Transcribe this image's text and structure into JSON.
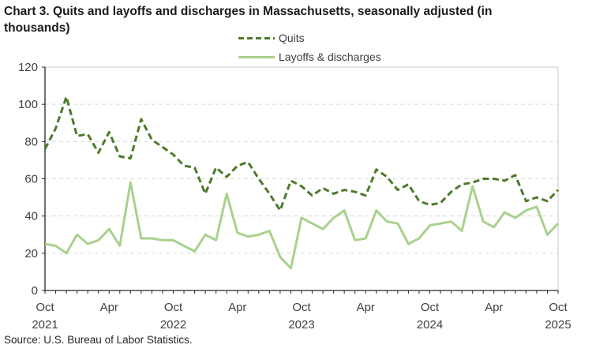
{
  "title": "Chart 3. Quits and layoffs and discharges in Massachusetts, seasonally adjusted (in thousands)",
  "source": "Source: U.S. Bureau of Labor Statistics.",
  "legend": {
    "quits_label": "Quits",
    "layoffs_label": "Layoffs & discharges"
  },
  "colors": {
    "quits": "#4d7a2b",
    "layoffs": "#a9d18e",
    "grid": "#d9d9d9",
    "border": "#c8c8c8",
    "axis": "#262626",
    "label_text": "#404040"
  },
  "chart_data": {
    "type": "line",
    "title": "Chart 3. Quits and layoffs and discharges in Massachusetts, seasonally adjusted (in thousands)",
    "xlabel": "",
    "ylabel": "",
    "ylim": [
      0,
      120
    ],
    "yticks": [
      0,
      20,
      40,
      60,
      80,
      100,
      120
    ],
    "grid": "horizontal-dashed",
    "legend_position": "top-center",
    "x_unit": "months, Oct 2021 through Oct 2025, one point per month",
    "n_points": 49,
    "x_tick_labels": [
      {
        "index": 0,
        "month": "Oct",
        "year": "2021"
      },
      {
        "index": 6,
        "month": "Apr"
      },
      {
        "index": 12,
        "month": "Oct",
        "year": "2022"
      },
      {
        "index": 18,
        "month": "Apr"
      },
      {
        "index": 24,
        "month": "Oct",
        "year": "2023"
      },
      {
        "index": 30,
        "month": "Apr"
      },
      {
        "index": 36,
        "month": "Oct",
        "year": "2024"
      },
      {
        "index": 42,
        "month": "Apr"
      },
      {
        "index": 48,
        "month": "Oct",
        "year": "2025"
      }
    ],
    "series": [
      {
        "name": "Quits",
        "style": "dashed",
        "values": [
          76,
          87,
          104,
          83,
          84,
          74,
          85,
          72,
          71,
          92,
          81,
          77,
          73,
          67,
          66,
          52,
          66,
          61,
          67,
          69,
          60,
          52,
          43,
          59,
          56,
          51,
          55,
          52,
          54,
          53,
          51,
          65,
          61,
          54,
          57,
          48,
          46,
          47,
          53,
          57,
          58,
          60,
          60,
          59,
          62,
          48,
          50,
          48,
          54
        ]
      },
      {
        "name": "Layoffs & discharges",
        "style": "solid",
        "values": [
          25,
          24,
          20,
          30,
          25,
          27,
          33,
          24,
          58,
          28,
          28,
          27,
          27,
          24,
          21,
          30,
          27,
          52,
          31,
          29,
          30,
          32,
          18,
          12,
          39,
          36,
          33,
          39,
          43,
          27,
          28,
          43,
          37,
          36,
          25,
          28,
          35,
          36,
          37,
          32,
          56,
          37,
          34,
          42,
          39,
          43,
          45,
          30,
          36
        ]
      }
    ]
  }
}
